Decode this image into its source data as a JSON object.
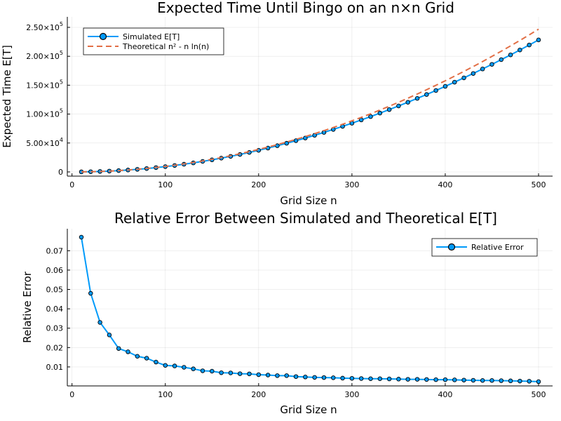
{
  "chart_data": [
    {
      "type": "line",
      "title": "Expected Time Until Bingo on an n×n Grid",
      "xlabel": "Grid Size n",
      "ylabel": "Expected Time E[T]",
      "xlim": [
        10,
        500
      ],
      "ylim": [
        0,
        250000
      ],
      "xticks": [
        0,
        100,
        200,
        300,
        400,
        500
      ],
      "xtick_labels": [
        "0",
        "100",
        "200",
        "300",
        "400",
        "500"
      ],
      "yticks": [
        0,
        50000,
        100000,
        150000,
        200000,
        250000
      ],
      "ytick_labels": [
        {
          "mant": "0",
          "exp": ""
        },
        {
          "mant": "5.00×10",
          "exp": "4"
        },
        {
          "mant": "1.00×10",
          "exp": "5"
        },
        {
          "mant": "1.50×10",
          "exp": "5"
        },
        {
          "mant": "2.00×10",
          "exp": "5"
        },
        {
          "mant": "2.50×10",
          "exp": "5"
        }
      ],
      "grid": true,
      "legend_position": "top-left",
      "x": [
        10,
        20,
        30,
        40,
        50,
        60,
        70,
        80,
        90,
        100,
        110,
        120,
        130,
        140,
        150,
        160,
        170,
        180,
        190,
        200,
        210,
        220,
        230,
        240,
        250,
        260,
        270,
        280,
        290,
        300,
        310,
        320,
        330,
        340,
        350,
        360,
        370,
        380,
        390,
        400,
        410,
        420,
        430,
        440,
        450,
        460,
        470,
        480,
        490,
        500
      ],
      "series": [
        {
          "name": "Simulated E[T]",
          "color": "#009AFA",
          "style": "line-markers",
          "values": [
            84,
            354,
            808,
            1427,
            2264,
            3285,
            4473,
            5822,
            7454,
            9174,
            11139,
            13304,
            15592,
            18200,
            20903,
            23813,
            26921,
            30200,
            33712,
            37373,
            41232,
            45309,
            49536,
            53993,
            58543,
            63339,
            68341,
            73458,
            78785,
            84235,
            89898,
            95686,
            101737,
            107770,
            114094,
            120468,
            127158,
            133901,
            140813,
            148014,
            155247,
            162667,
            170277,
            178053,
            186002,
            194167,
            202407,
            210905,
            219535,
            228315
          ]
        },
        {
          "name": "Theoretical n² - n ln(n)",
          "color": "#E26F46",
          "style": "dashed",
          "values": [
            77,
            340,
            798,
            1412,
            2304,
            3354,
            4603,
            6049,
            7695,
            9539,
            11583,
            13825,
            16266,
            18906,
            21744,
            24778,
            28016,
            31453,
            35087,
            38940,
            42977,
            47214,
            51649,
            56285,
            61120,
            66153,
            71387,
            76820,
            82452,
            88289,
            94327,
            100563,
            106997,
            113617,
            120449,
            127482,
            134718,
            142152,
            149812,
            157607,
            165628,
            173839,
            182252,
            190897,
            199751,
            208768,
            217966,
            227360,
            236987,
            246893
          ]
        }
      ]
    },
    {
      "type": "line",
      "title": "Relative Error Between Simulated and Theoretical E[T]",
      "xlabel": "Grid Size n",
      "ylabel": "Relative Error",
      "xlim": [
        10,
        500
      ],
      "ylim": [
        0.002,
        0.077
      ],
      "xticks": [
        0,
        100,
        200,
        300,
        400,
        500
      ],
      "xtick_labels": [
        "0",
        "100",
        "200",
        "300",
        "400",
        "500"
      ],
      "yticks": [
        0.01,
        0.02,
        0.03,
        0.04,
        0.05,
        0.06,
        0.07
      ],
      "ytick_labels": [
        "0.01",
        "0.02",
        "0.03",
        "0.04",
        "0.05",
        "0.06",
        "0.07"
      ],
      "grid": true,
      "legend_position": "top-right",
      "x": [
        10,
        20,
        30,
        40,
        50,
        60,
        70,
        80,
        90,
        100,
        110,
        120,
        130,
        140,
        150,
        160,
        170,
        180,
        190,
        200,
        210,
        220,
        230,
        240,
        250,
        260,
        270,
        280,
        290,
        300,
        310,
        320,
        330,
        340,
        350,
        360,
        370,
        380,
        390,
        400,
        410,
        420,
        430,
        440,
        450,
        460,
        470,
        480,
        490,
        500
      ],
      "series": [
        {
          "name": "Relative Error",
          "color": "#009AFA",
          "style": "line-markers",
          "values": [
            0.077,
            0.048,
            0.033,
            0.0265,
            0.0195,
            0.0178,
            0.0155,
            0.0145,
            0.0125,
            0.0108,
            0.0105,
            0.0098,
            0.009,
            0.008,
            0.0078,
            0.007,
            0.0069,
            0.0065,
            0.0064,
            0.006,
            0.0058,
            0.0055,
            0.0055,
            0.005,
            0.0048,
            0.0046,
            0.0045,
            0.0044,
            0.0042,
            0.0041,
            0.004,
            0.0039,
            0.0039,
            0.0038,
            0.0037,
            0.0036,
            0.0036,
            0.0035,
            0.0034,
            0.0034,
            0.0033,
            0.0032,
            0.0031,
            0.003,
            0.003,
            0.0029,
            0.0028,
            0.0027,
            0.0026,
            0.0024
          ]
        }
      ]
    }
  ]
}
